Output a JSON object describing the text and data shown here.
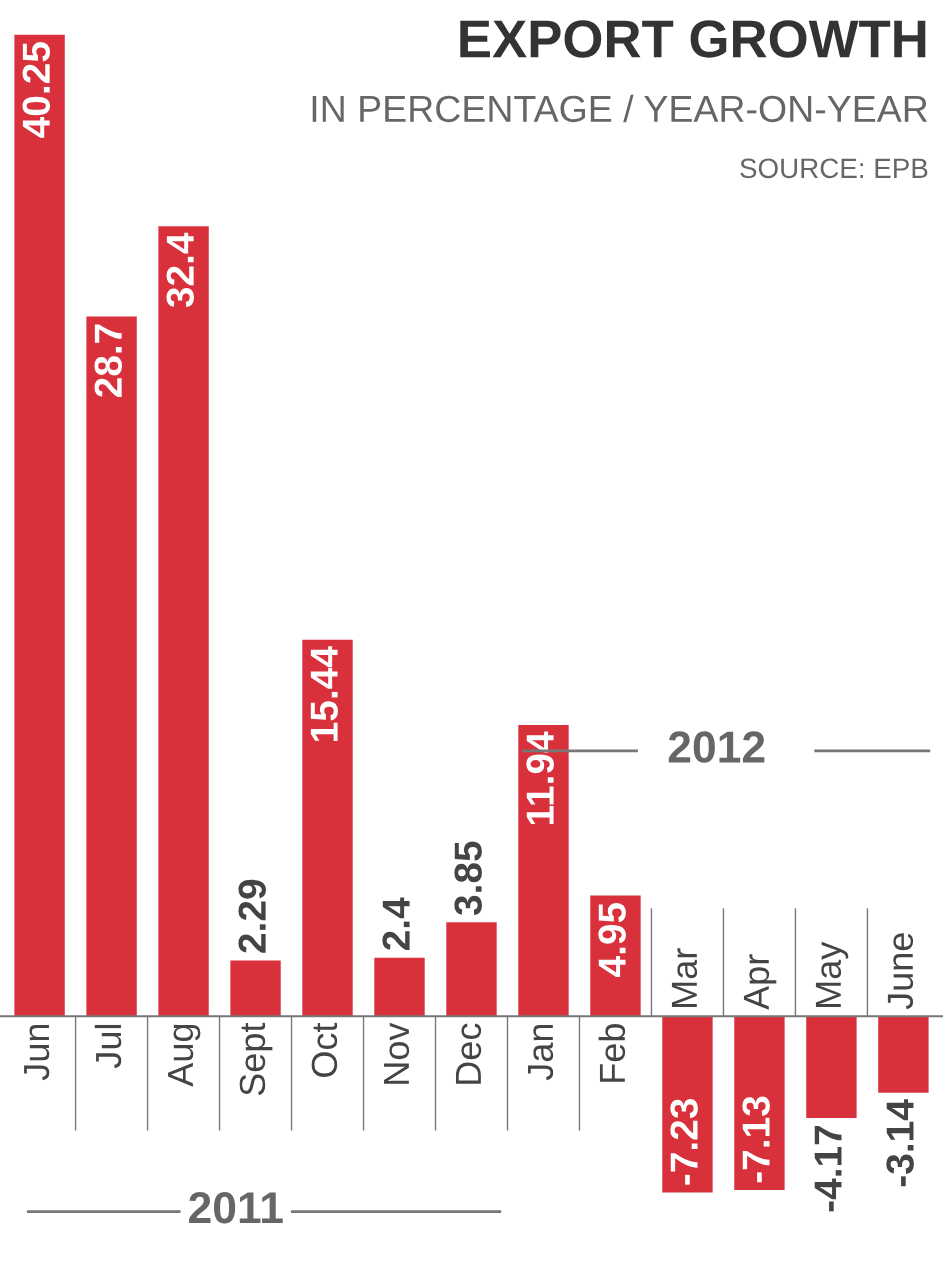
{
  "chart_data": {
    "type": "bar",
    "title": "EXPORT GROWTH",
    "subtitle": "IN PERCENTAGE / YEAR-ON-YEAR",
    "annotations": [
      "SOURCE: EPB",
      "2011",
      "2012"
    ],
    "categories": [
      "Jun",
      "Jul",
      "Aug",
      "Sept",
      "Oct",
      "Nov",
      "Dec",
      "Jan",
      "Feb",
      "Mar",
      "Apr",
      "May",
      "June"
    ],
    "values": [
      40.25,
      28.7,
      32.4,
      2.29,
      15.44,
      2.4,
      3.85,
      11.94,
      4.95,
      -7.23,
      -7.13,
      -4.17,
      -3.14
    ],
    "color": "#d9313b",
    "data_labels": true
  }
}
